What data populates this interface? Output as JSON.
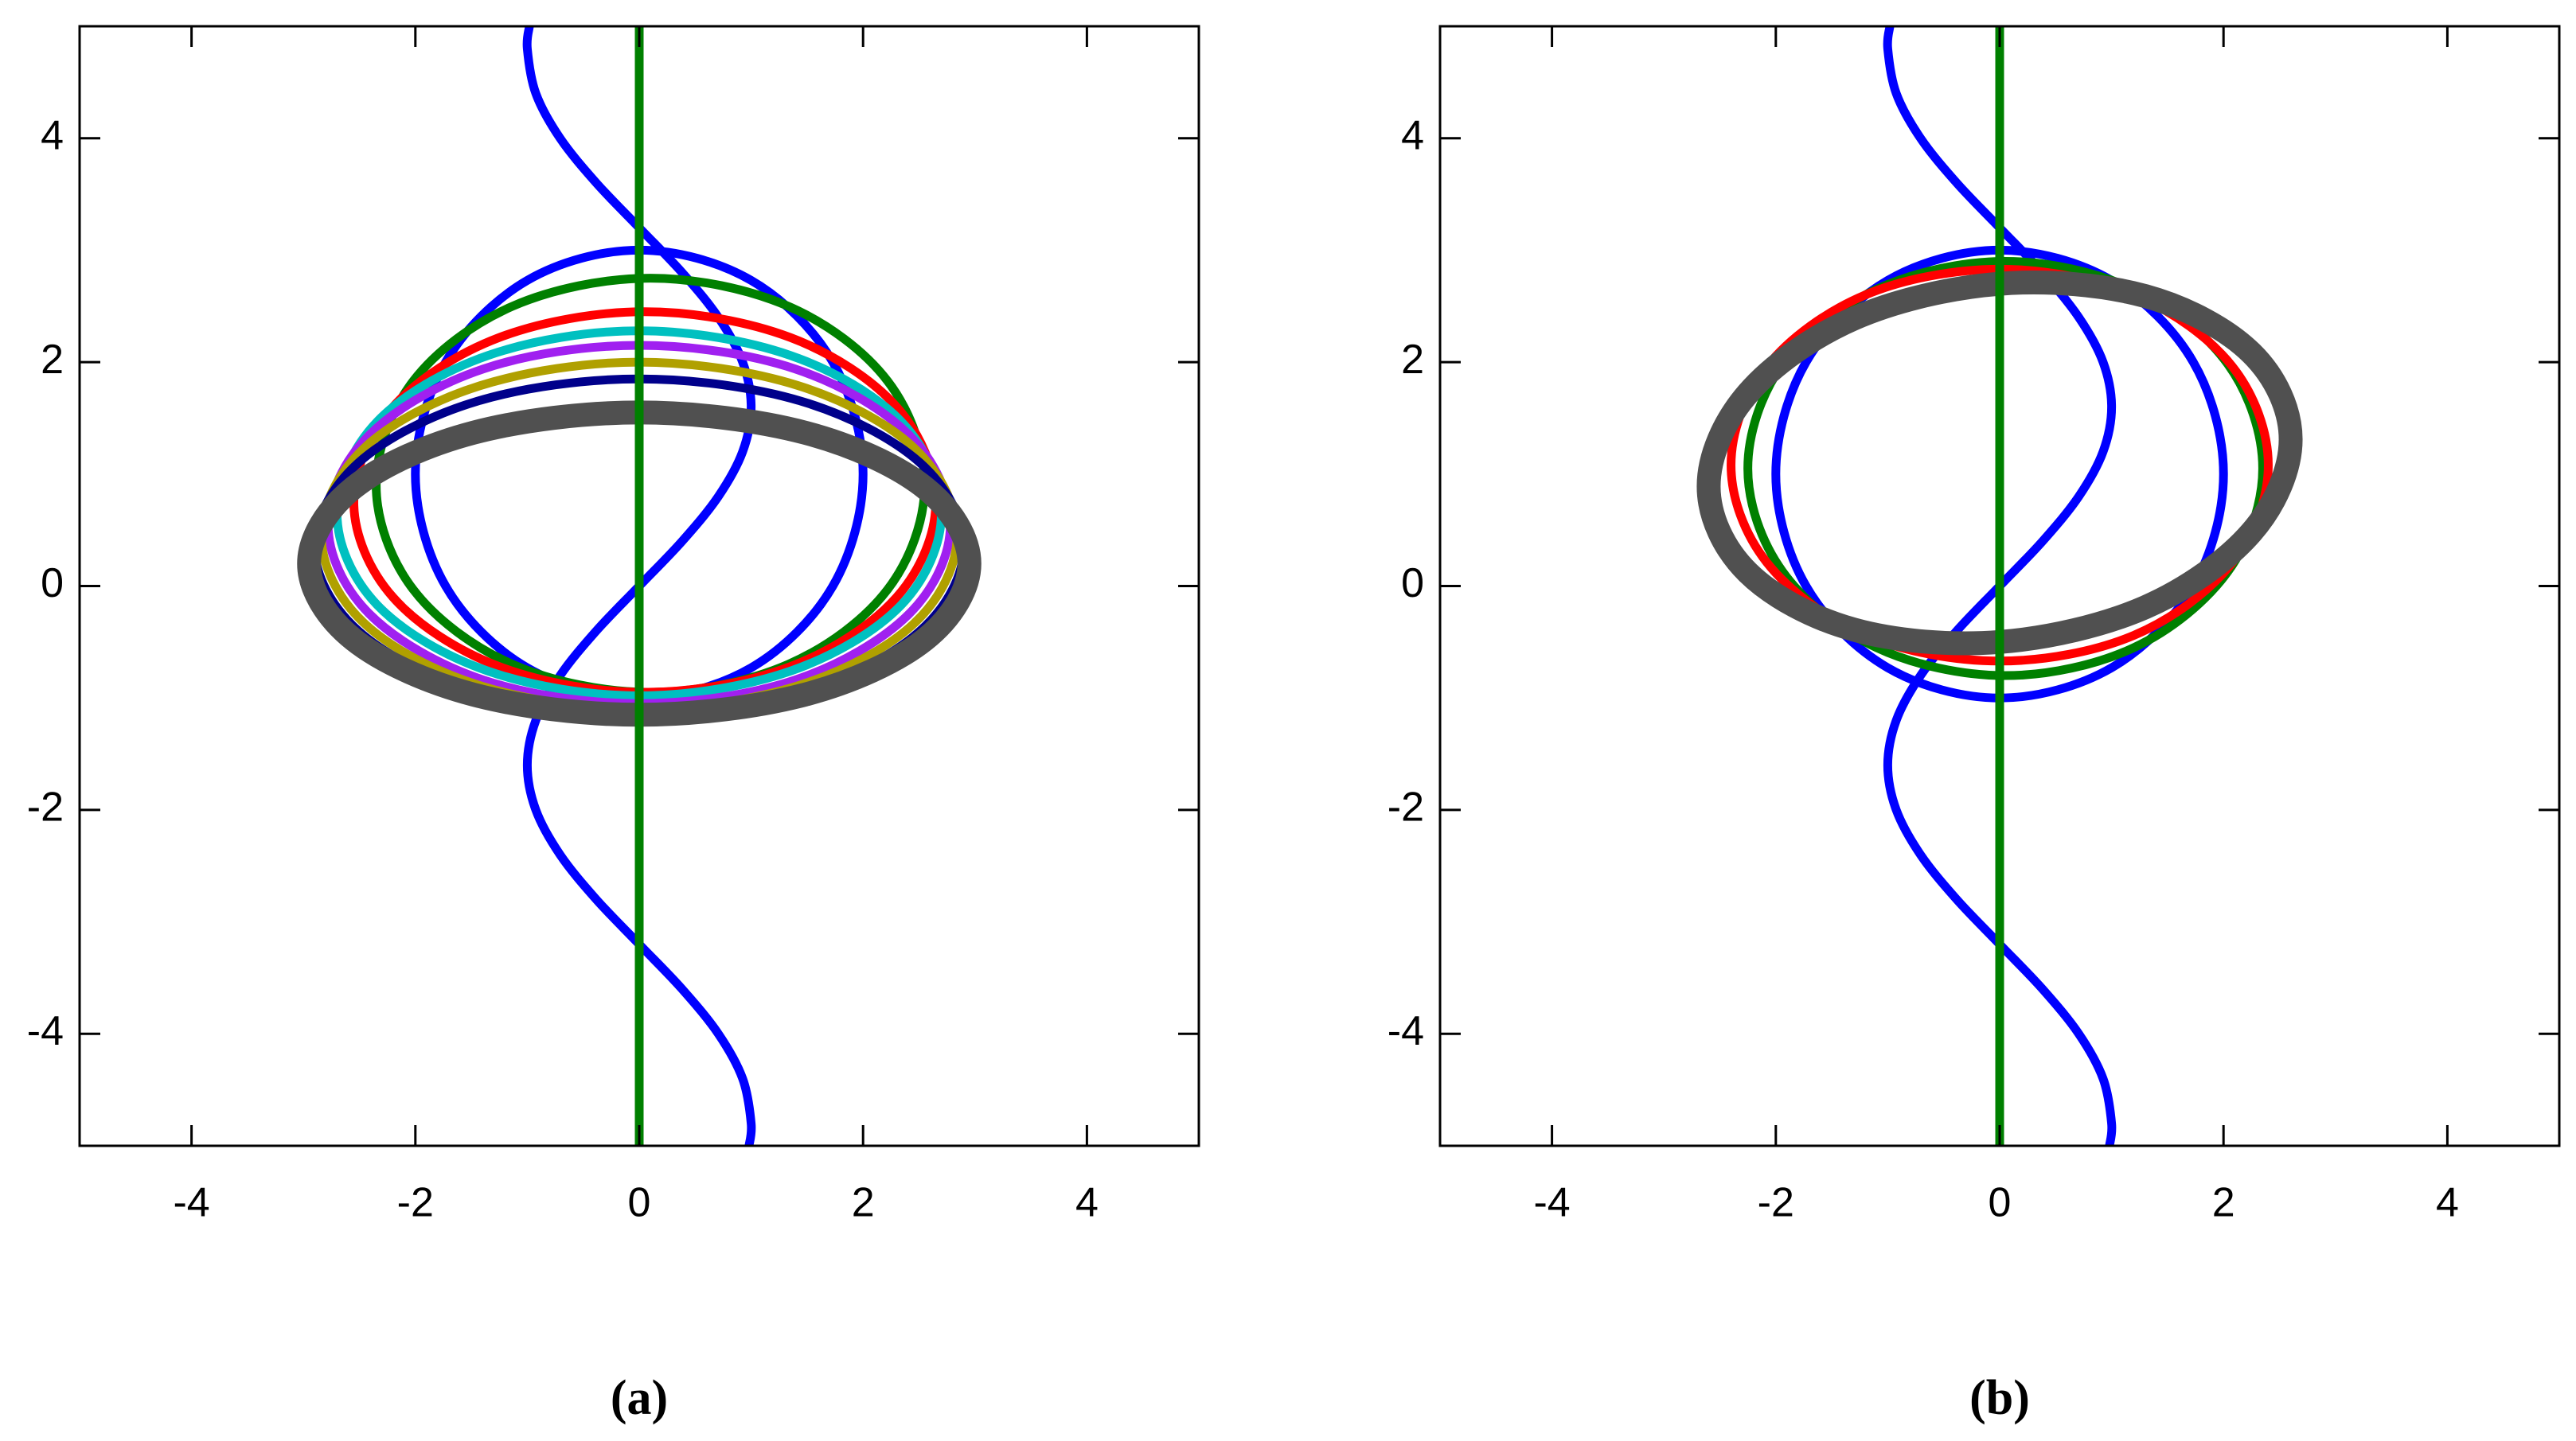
{
  "chart_data": [
    {
      "type": "line",
      "caption": "(a)",
      "xlim": [
        -5,
        5
      ],
      "ylim": [
        -5,
        5
      ],
      "xticks": [
        -4,
        -2,
        0,
        2,
        4
      ],
      "yticks": [
        -4,
        -2,
        0,
        2,
        4
      ],
      "series": [
        {
          "color": "#0000ff",
          "x": [
            0.981,
            1,
            0.924,
            0.707,
            0.383,
            0,
            -0.383,
            -0.707,
            -0.924,
            -1,
            -0.924,
            -0.707,
            -0.383,
            0,
            0.383,
            0.707,
            0.924,
            1,
            0.924,
            0.707,
            0.383,
            0,
            -0.383,
            -0.707,
            -0.924,
            -1,
            -0.981
          ],
          "y": [
            -5,
            -4.8,
            -4.4,
            -4,
            -3.6,
            -3.2,
            -2.8,
            -2.4,
            -2,
            -1.6,
            -1.2,
            -0.8,
            -0.4,
            0,
            0.4,
            0.8,
            1.2,
            1.6,
            2,
            2.4,
            2.8,
            3.2,
            3.6,
            4,
            4.4,
            4.8,
            5
          ]
        },
        {
          "color": "#0000ff",
          "x": [
            2,
            1.73,
            1,
            0,
            -1,
            -1.73,
            -2,
            -1.73,
            -1,
            0,
            1,
            1.73,
            2
          ],
          "y": [
            1,
            2,
            2.73,
            3,
            2.73,
            2,
            1,
            0,
            -0.73,
            -1,
            -0.73,
            0,
            1
          ]
        },
        {
          "color": "#008000",
          "x": [
            2.55,
            2.22,
            1.33,
            0.1,
            -1.13,
            -2.02,
            -2.35,
            -2.02,
            -1.13,
            0.1,
            1.33,
            2.22,
            2.55
          ],
          "y": [
            0.9,
            1.83,
            2.5,
            2.75,
            2.5,
            1.83,
            0.9,
            -0.03,
            -0.7,
            -0.95,
            -0.7,
            -0.03,
            0.9
          ]
        },
        {
          "color": "#ff0000",
          "x": [
            2.65,
            2.3,
            1.35,
            0.05,
            -1.25,
            -2.2,
            -2.55,
            -2.2,
            -1.25,
            0.05,
            1.35,
            2.3,
            2.65
          ],
          "y": [
            0.75,
            1.6,
            2.22,
            2.45,
            2.22,
            1.6,
            0.75,
            -0.1,
            -0.72,
            -0.95,
            -0.72,
            -0.1,
            0.75
          ]
        },
        {
          "color": "#00c0c0",
          "x": [
            2.7,
            2.34,
            1.35,
            0,
            -1.35,
            -2.34,
            -2.7,
            -2.34,
            -1.35,
            0,
            1.35,
            2.34,
            2.7
          ],
          "y": [
            0.65,
            1.47,
            2.06,
            2.28,
            2.06,
            1.47,
            0.65,
            -0.17,
            -0.76,
            -0.98,
            -0.76,
            -0.17,
            0.65
          ]
        },
        {
          "color": "#a020f0",
          "x": [
            2.78,
            2.41,
            1.39,
            0,
            -1.39,
            -2.41,
            -2.78,
            -2.41,
            -1.39,
            0,
            1.39,
            2.41,
            2.78
          ],
          "y": [
            0.55,
            1.35,
            1.94,
            2.15,
            1.94,
            1.35,
            0.55,
            -0.25,
            -0.84,
            -1.05,
            -0.84,
            -0.25,
            0.55
          ]
        },
        {
          "color": "#b0a000",
          "x": [
            2.84,
            2.46,
            1.42,
            0,
            -1.42,
            -2.46,
            -2.84,
            -2.46,
            -1.42,
            0,
            1.42,
            2.46,
            2.84
          ],
          "y": [
            0.45,
            1.23,
            1.79,
            2,
            1.79,
            1.23,
            0.45,
            -0.33,
            -0.89,
            -1.1,
            -0.89,
            -0.33,
            0.45
          ]
        },
        {
          "color": "#00008b",
          "x": [
            2.9,
            2.51,
            1.45,
            0,
            -1.45,
            -2.51,
            -2.9,
            -2.51,
            -1.45,
            0,
            1.45,
            2.51,
            2.9
          ],
          "y": [
            0.35,
            1.1,
            1.65,
            1.85,
            1.65,
            1.1,
            0.35,
            -0.4,
            -0.95,
            -1.15,
            -0.95,
            -0.4,
            0.35
          ]
        },
        {
          "color": "#505050",
          "x": [
            2.95,
            2.55,
            1.48,
            0,
            -1.48,
            -2.55,
            -2.95,
            -2.55,
            -1.48,
            0,
            1.48,
            2.55,
            2.95
          ],
          "y": [
            0.2,
            0.88,
            1.37,
            1.55,
            1.37,
            0.88,
            0.2,
            -0.48,
            -0.97,
            -1.15,
            -0.97,
            -0.48,
            0.2
          ]
        },
        {
          "color": "#008000",
          "x": [
            0,
            0
          ],
          "y": [
            -5,
            5
          ]
        }
      ]
    },
    {
      "type": "line",
      "caption": "(b)",
      "xlim": [
        -5,
        5
      ],
      "ylim": [
        -5,
        5
      ],
      "xticks": [
        -4,
        -2,
        0,
        2,
        4
      ],
      "yticks": [
        -4,
        -2,
        0,
        2,
        4
      ],
      "series": [
        {
          "color": "#0000ff",
          "x": [
            0.981,
            1,
            0.924,
            0.707,
            0.383,
            0,
            -0.383,
            -0.707,
            -0.924,
            -1,
            -0.924,
            -0.707,
            -0.383,
            0,
            0.383,
            0.707,
            0.924,
            1,
            0.924,
            0.707,
            0.383,
            0,
            -0.383,
            -0.707,
            -0.924,
            -1,
            -0.981
          ],
          "y": [
            -5,
            -4.8,
            -4.4,
            -4,
            -3.6,
            -3.2,
            -2.8,
            -2.4,
            -2,
            -1.6,
            -1.2,
            -0.8,
            -0.4,
            0,
            0.4,
            0.8,
            1.2,
            1.6,
            2,
            2.4,
            2.8,
            3.2,
            3.6,
            4,
            4.4,
            4.8,
            5
          ]
        },
        {
          "color": "#0000ff",
          "x": [
            2,
            1.73,
            1,
            0,
            -1,
            -1.73,
            -2,
            -1.73,
            -1,
            0,
            1,
            1.73,
            2
          ],
          "y": [
            1,
            2,
            2.73,
            3,
            2.73,
            2,
            1,
            0,
            -0.73,
            -1,
            -0.73,
            0,
            1
          ]
        },
        {
          "color": "#008000",
          "x": [
            2.35,
            2.04,
            1.2,
            0.05,
            -1.1,
            -1.94,
            -2.25,
            -1.94,
            -1.1,
            0.05,
            1.2,
            2.04,
            2.35
          ],
          "y": [
            1.05,
            1.98,
            2.65,
            2.9,
            2.65,
            1.98,
            1.05,
            0.13,
            -0.55,
            -0.8,
            -0.55,
            0.13,
            1.05
          ]
        },
        {
          "color": "#ff0000",
          "x": [
            2.4,
            2.08,
            1.2,
            0,
            -1.2,
            -2.08,
            -2.4,
            -2.08,
            -1.2,
            0,
            1.2,
            2.08,
            2.4
          ],
          "y": [
            1.08,
            1.96,
            2.6,
            2.83,
            2.6,
            1.96,
            1.08,
            0.21,
            -0.44,
            -0.67,
            -0.44,
            0.21,
            1.08
          ]
        },
        {
          "color": "#505050",
          "x": [
            2.6,
            2.25,
            1.3,
            0,
            -1.3,
            -2.25,
            -2.6,
            -2.25,
            -1.3,
            0,
            1.3,
            2.25,
            2.6
          ],
          "y": [
            1.31,
            2.08,
            2.59,
            2.7,
            2.39,
            1.72,
            0.89,
            0.12,
            -0.39,
            -0.5,
            -0.19,
            0.48,
            1.31
          ]
        },
        {
          "color": "#008000",
          "x": [
            0,
            0
          ],
          "y": [
            -5,
            5
          ]
        }
      ]
    }
  ]
}
